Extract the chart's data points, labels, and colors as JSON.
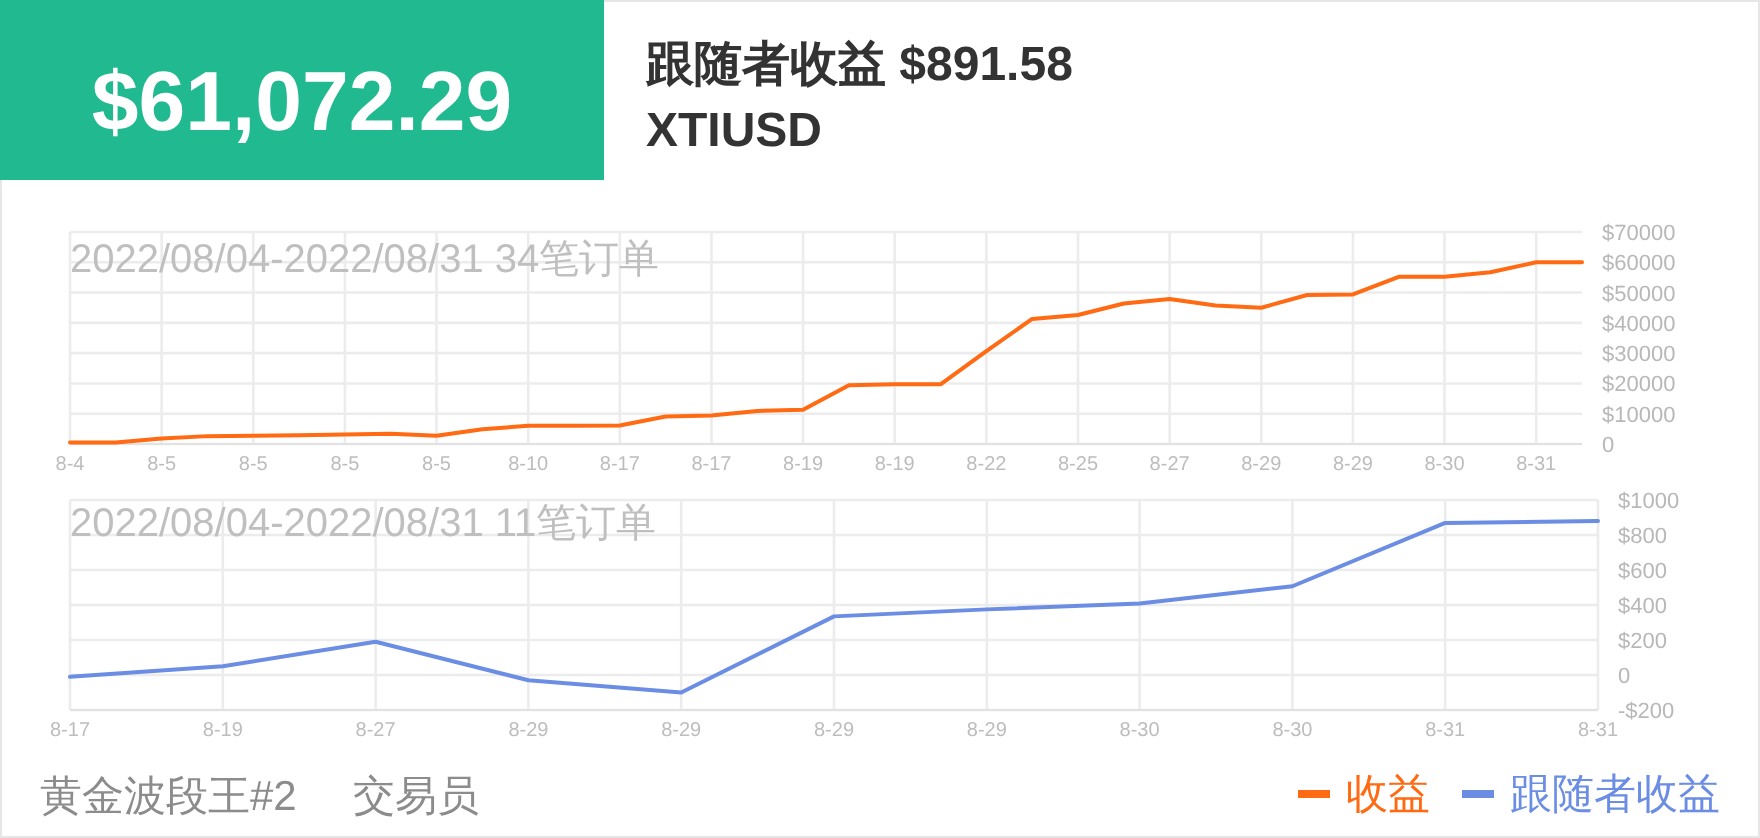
{
  "chart_data": [
    {
      "type": "line",
      "title": "2022/08/04-2022/08/31 34笔订单",
      "annotations": [
        "$61,072.29",
        "跟随者收益 $891.58",
        "XTIUSD"
      ],
      "categories": [
        "8-4",
        null,
        "8-5",
        null,
        "8-5",
        null,
        "8-5",
        null,
        "8-5",
        null,
        "8-10",
        null,
        "8-17",
        null,
        "8-17",
        null,
        "8-19",
        null,
        "8-19",
        null,
        "8-22",
        null,
        "8-25",
        null,
        "8-27",
        null,
        "8-29",
        null,
        "8-29",
        null,
        "8-30",
        null,
        "8-31",
        null
      ],
      "series": [
        {
          "name": "收益",
          "color": "#ff6a13",
          "values": [
            500,
            500,
            1800,
            2600,
            2700,
            2900,
            3100,
            3400,
            2700,
            4900,
            6000,
            6000,
            6100,
            9100,
            9400,
            10900,
            11300,
            19400,
            19700,
            19700,
            30700,
            41300,
            42600,
            46400,
            47900,
            45700,
            45000,
            49200,
            49400,
            55200,
            55200,
            56700,
            60000,
            60000
          ]
        }
      ],
      "ylim": [
        0,
        70000
      ],
      "yticks": [
        0,
        {
          "value": 10000,
          "label": "$10000"
        },
        {
          "value": 20000,
          "label": "$20000"
        },
        {
          "value": 30000,
          "label": "$30000"
        },
        {
          "value": 40000,
          "label": "$40000"
        },
        {
          "value": 50000,
          "label": "$50000"
        },
        {
          "value": 60000,
          "label": "$60000"
        },
        {
          "value": 70000,
          "label": "$70000"
        }
      ],
      "grid": true,
      "legend": "bottom right",
      "marker": "none",
      "line_style": "solid"
    },
    {
      "type": "line",
      "title": "2022/08/04-2022/08/31 11笔订单",
      "annotations": [
        "黄金波段王#2",
        "交易员"
      ],
      "categories": [
        "8-17",
        "8-19",
        "8-27",
        "8-29",
        "8-29",
        "8-29",
        "8-29",
        "8-30",
        "8-30",
        "8-31",
        "8-31"
      ],
      "series": [
        {
          "name": "跟随者收益",
          "color": "#6b8de3",
          "values": [
            -10,
            50,
            190,
            -30,
            -100,
            335,
            375,
            408,
            507,
            869,
            880
          ]
        }
      ],
      "ylim": [
        -200,
        1000
      ],
      "yticks": [
        {
          "value": -200,
          "label": "-$200"
        },
        0,
        {
          "value": 200,
          "label": "$200"
        },
        {
          "value": 400,
          "label": "$400"
        },
        {
          "value": 600,
          "label": "$600"
        },
        {
          "value": 800,
          "label": "$800"
        },
        {
          "value": 1000,
          "label": "$1000"
        }
      ],
      "grid": true,
      "legend": "bottom right",
      "marker": "none",
      "line_style": "solid"
    }
  ]
}
